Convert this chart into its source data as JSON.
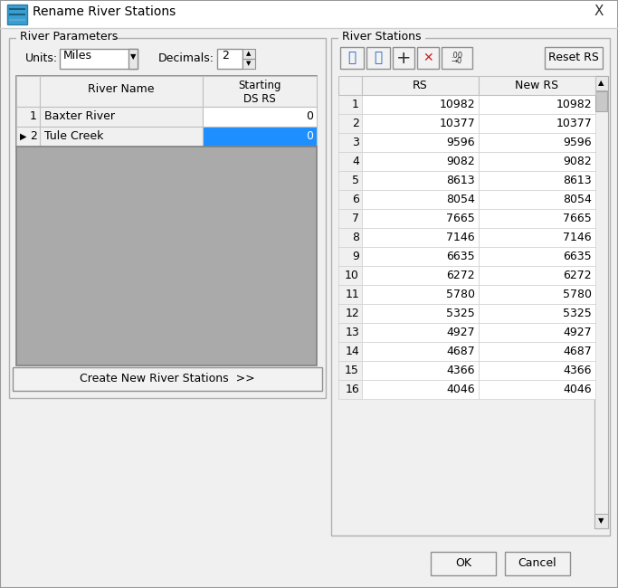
{
  "title": "Rename River Stations",
  "bg_color": "#f0f0f0",
  "white": "#ffffff",
  "blue_highlight": "#1e8fff",
  "gray_area": "#aaaaaa",
  "units_label": "Units:",
  "units_value": "Miles",
  "decimals_label": "Decimals:",
  "decimals_value": "2",
  "river_params_label": "River Parameters",
  "river_stations_label": "River Stations",
  "river_rows": [
    [
      1,
      "Baxter River",
      "0"
    ],
    [
      2,
      "Tule Creek",
      "0"
    ]
  ],
  "selected_row": 1,
  "rs_col_header": "RS",
  "new_rs_col_header": "New RS",
  "rs_data": [
    [
      1,
      10982,
      10982
    ],
    [
      2,
      10377,
      10377
    ],
    [
      3,
      9596,
      9596
    ],
    [
      4,
      9082,
      9082
    ],
    [
      5,
      8613,
      8613
    ],
    [
      6,
      8054,
      8054
    ],
    [
      7,
      7665,
      7665
    ],
    [
      8,
      7146,
      7146
    ],
    [
      9,
      6635,
      6635
    ],
    [
      10,
      6272,
      6272
    ],
    [
      11,
      5780,
      5780
    ],
    [
      12,
      5325,
      5325
    ],
    [
      13,
      4927,
      4927
    ],
    [
      14,
      4687,
      4687
    ],
    [
      15,
      4366,
      4366
    ],
    [
      16,
      4046,
      4046
    ]
  ],
  "btn_create": "Create New River Stations  >>",
  "btn_ok": "OK",
  "btn_cancel": "Cancel",
  "btn_reset": "Reset RS"
}
